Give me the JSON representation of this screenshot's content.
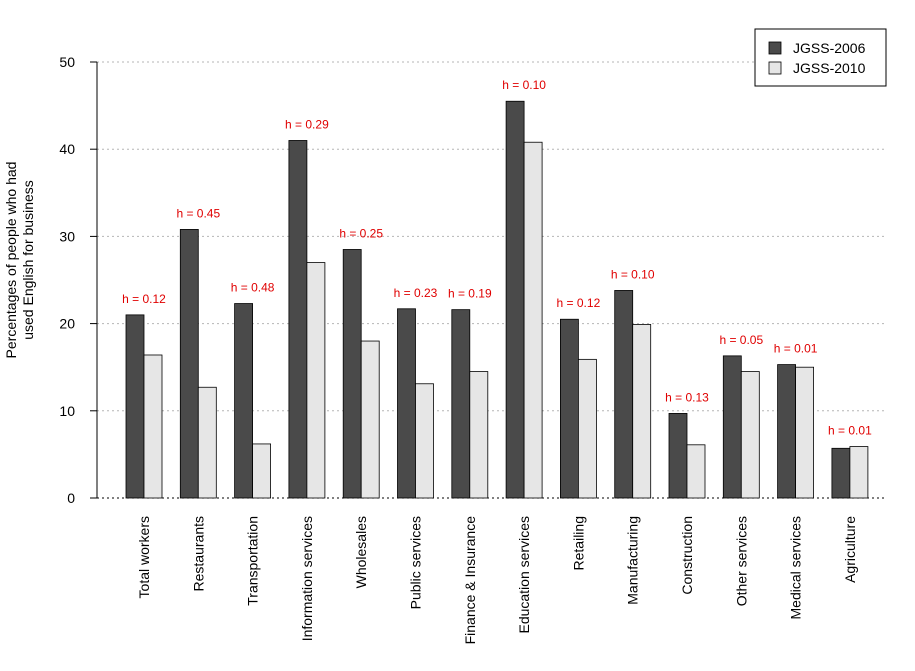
{
  "chart_data": {
    "type": "bar",
    "ylabel_lines": [
      "Percentages of people who had",
      "used English for business"
    ],
    "ylim": [
      0,
      50
    ],
    "yticks": [
      0,
      10,
      20,
      30,
      40,
      50
    ],
    "grid": "horizontal dotted",
    "legend_position": "top-right",
    "categories": [
      "Total workers",
      "Restaurants",
      "Transportation",
      "Information services",
      "Wholesales",
      "Public services",
      "Finance & Insurance",
      "Education services",
      "Retailing",
      "Manufacturing",
      "Construction",
      "Other services",
      "Medical services",
      "Agriculture"
    ],
    "series": [
      {
        "name": "JGSS-2006",
        "color": "#4a4a4a",
        "values": [
          21.0,
          30.8,
          22.3,
          41.0,
          28.5,
          21.7,
          21.6,
          45.5,
          20.5,
          23.8,
          9.7,
          16.3,
          15.3,
          5.7
        ]
      },
      {
        "name": "JGSS-2010",
        "color": "#e6e6e6",
        "values": [
          16.4,
          12.7,
          6.2,
          27.0,
          18.0,
          13.1,
          14.5,
          40.8,
          15.9,
          19.9,
          6.1,
          14.5,
          15.0,
          5.9
        ]
      }
    ],
    "annotations": [
      "h = 0.12",
      "h = 0.45",
      "h = 0.48",
      "h = 0.29",
      "h = 0.25",
      "h = 0.23",
      "h = 0.19",
      "h = 0.10",
      "h = 0.12",
      "h = 0.10",
      "h = 0.13",
      "h = 0.05",
      "h = 0.01",
      "h = 0.01"
    ],
    "annotation_color": "#e00000"
  }
}
